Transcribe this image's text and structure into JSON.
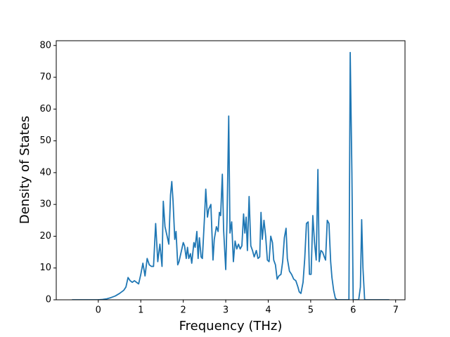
{
  "chart_data": {
    "type": "line",
    "xlabel": "Frequency (THz)",
    "ylabel": "Density of States",
    "color": "#1f77b4",
    "xlim": [
      -0.99,
      7.22
    ],
    "ylim": [
      0,
      81.5
    ],
    "xticks": [
      0,
      1,
      2,
      3,
      4,
      5,
      6,
      7
    ],
    "yticks": [
      0,
      10,
      20,
      30,
      40,
      50,
      60,
      70,
      80
    ],
    "x": [
      -0.62,
      -0.3,
      0,
      0.1,
      0.2,
      0.3,
      0.4,
      0.5,
      0.6,
      0.65,
      0.7,
      0.75,
      0.8,
      0.85,
      0.9,
      0.95,
      1.0,
      1.05,
      1.1,
      1.15,
      1.2,
      1.25,
      1.3,
      1.35,
      1.4,
      1.45,
      1.5,
      1.53,
      1.57,
      1.62,
      1.66,
      1.7,
      1.73,
      1.76,
      1.8,
      1.83,
      1.87,
      1.9,
      1.95,
      2.0,
      2.03,
      2.07,
      2.1,
      2.13,
      2.17,
      2.2,
      2.25,
      2.28,
      2.32,
      2.35,
      2.38,
      2.42,
      2.45,
      2.5,
      2.53,
      2.57,
      2.6,
      2.65,
      2.7,
      2.73,
      2.78,
      2.82,
      2.85,
      2.88,
      2.92,
      2.95,
      3.0,
      3.03,
      3.07,
      3.1,
      3.14,
      3.18,
      3.22,
      3.26,
      3.3,
      3.34,
      3.38,
      3.42,
      3.45,
      3.48,
      3.51,
      3.55,
      3.59,
      3.63,
      3.67,
      3.72,
      3.76,
      3.8,
      3.83,
      3.86,
      3.9,
      3.94,
      3.98,
      4.02,
      4.06,
      4.1,
      4.13,
      4.17,
      4.21,
      4.25,
      4.3,
      4.34,
      4.38,
      4.42,
      4.45,
      4.5,
      4.55,
      4.6,
      4.65,
      4.7,
      4.73,
      4.77,
      4.82,
      4.86,
      4.9,
      4.94,
      4.97,
      5.01,
      5.05,
      5.09,
      5.13,
      5.17,
      5.2,
      5.24,
      5.28,
      5.32,
      5.35,
      5.39,
      5.43,
      5.47,
      5.5,
      5.54,
      5.58,
      5.62,
      5.9,
      5.93,
      5.97,
      6.0,
      6.13,
      6.17,
      6.2,
      6.23,
      6.27,
      6.5,
      6.85
    ],
    "values": [
      0,
      0,
      0,
      0.1,
      0.3,
      0.7,
      1.2,
      2,
      3,
      4,
      7,
      6,
      5.5,
      6,
      5.5,
      5,
      8,
      11.5,
      7.5,
      13,
      11,
      10.5,
      10.5,
      24,
      12,
      17.5,
      10.5,
      31,
      23,
      20,
      17.5,
      33,
      37.2,
      31,
      19,
      21.5,
      11,
      12,
      15,
      18,
      17,
      13,
      16.5,
      13,
      14.5,
      11.5,
      18,
      16.5,
      21.5,
      13,
      19.5,
      13.5,
      13,
      26,
      34.8,
      26,
      28.5,
      30,
      12.5,
      19,
      23,
      21.5,
      27.5,
      26.5,
      39.5,
      22,
      9.5,
      25,
      57.8,
      21,
      24.5,
      12,
      18.5,
      16,
      17.5,
      16,
      17,
      27,
      21,
      26,
      15.5,
      32.5,
      17,
      15.5,
      13.5,
      15.5,
      13,
      13.5,
      27.5,
      19,
      25,
      20,
      12.5,
      12,
      20,
      18,
      12.5,
      11,
      6.5,
      7.5,
      8,
      12,
      19.5,
      22.5,
      13,
      9,
      8,
      6.5,
      6,
      4,
      2.5,
      2,
      5.5,
      13,
      24,
      24.5,
      8,
      8,
      26.5,
      18,
      12.5,
      41,
      12,
      15.5,
      15,
      13.5,
      12.5,
      25,
      24,
      12,
      7,
      3,
      0.5,
      0,
      0,
      77.8,
      40,
      0,
      0,
      4,
      25.2,
      10,
      0,
      0,
      0
    ]
  }
}
